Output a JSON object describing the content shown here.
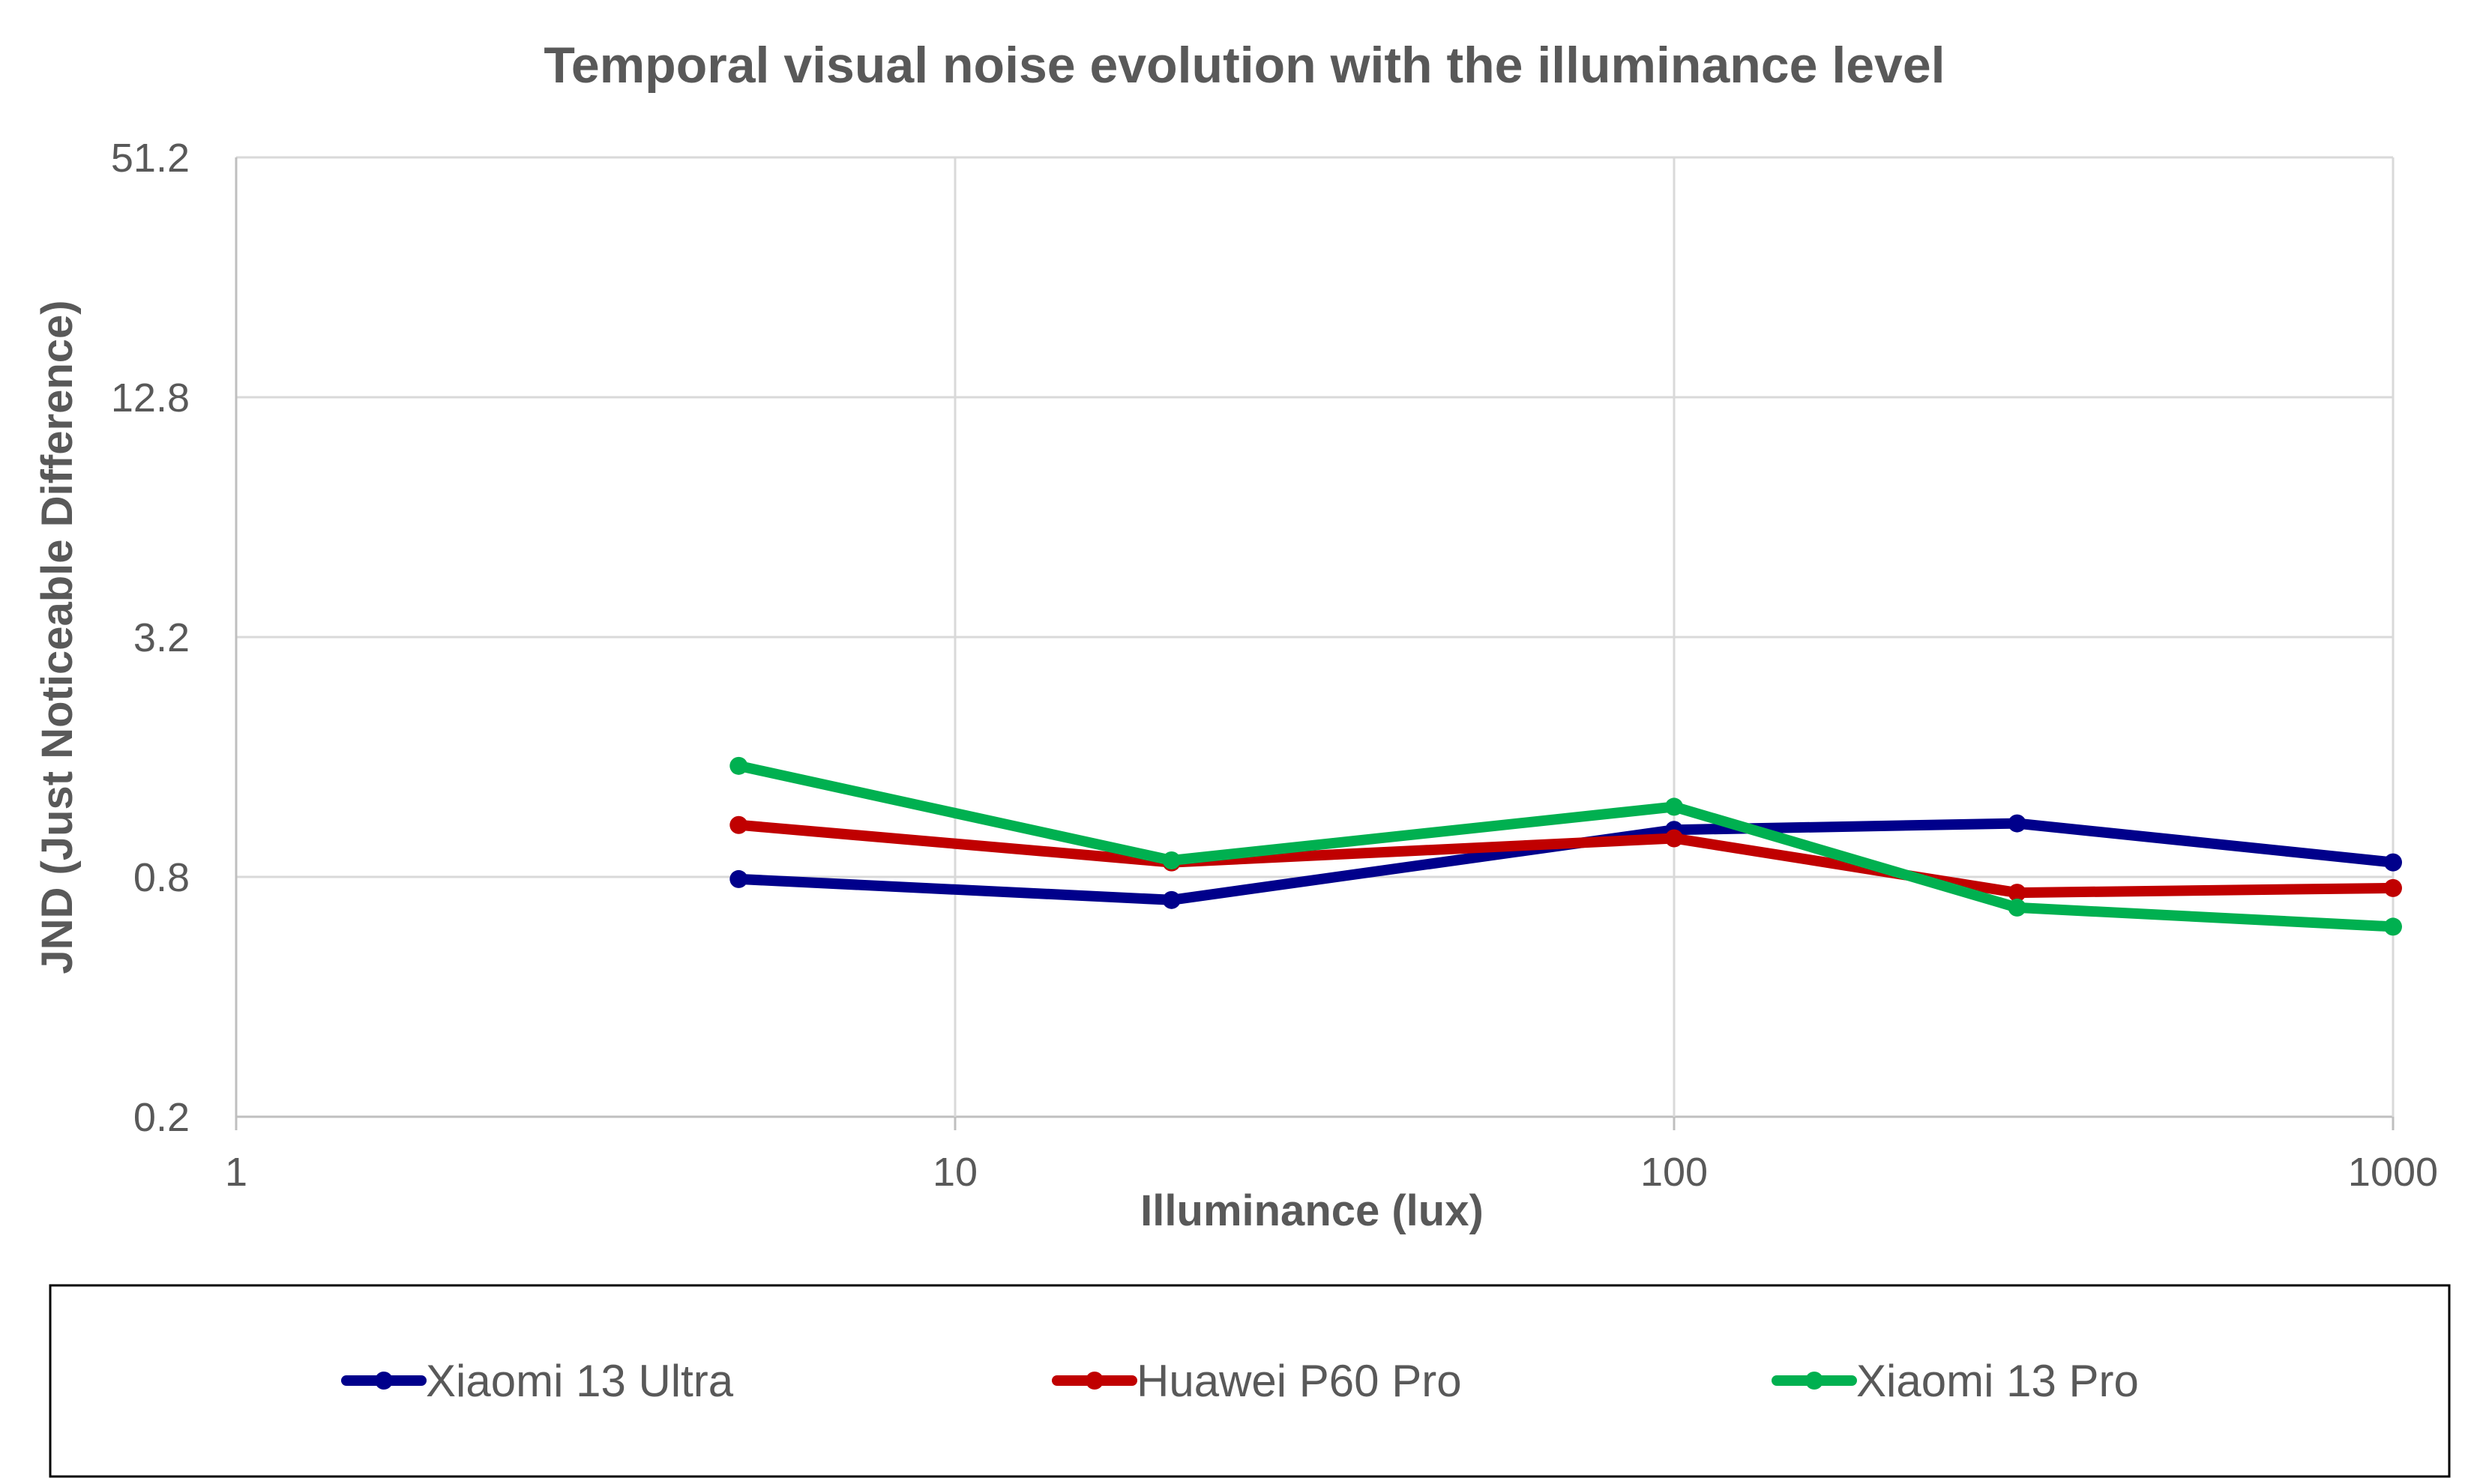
{
  "chart_data": {
    "type": "line",
    "title": "Temporal visual noise evolution with the illuminance level",
    "xlabel": "Illuminance (lux)",
    "ylabel": "JND (Just Noticeable Difference)",
    "x_scale": "log",
    "y_scale": "log",
    "xlim": [
      1,
      1000
    ],
    "ylim": [
      0.2,
      51.2
    ],
    "x_ticks": [
      1,
      10,
      100,
      1000
    ],
    "x_tick_labels": [
      "1",
      "10",
      "100",
      "1000"
    ],
    "y_ticks": [
      0.2,
      0.8,
      3.2,
      12.8,
      51.2
    ],
    "y_tick_labels": [
      "0.2",
      "0.8",
      "3.2",
      "12.8",
      "51.2"
    ],
    "grid": true,
    "legend_position": "bottom",
    "series": [
      {
        "name": "Xiaomi 13 Ultra",
        "color": "#00008b",
        "x": [
          5,
          20,
          100,
          300,
          1000
        ],
        "y": [
          0.79,
          0.7,
          1.05,
          1.09,
          0.87
        ]
      },
      {
        "name": "Huawei P60 Pro",
        "color": "#c00000",
        "x": [
          5,
          20,
          100,
          300,
          1000
        ],
        "y": [
          1.08,
          0.87,
          1.0,
          0.73,
          0.75
        ]
      },
      {
        "name": "Xiaomi 13 Pro",
        "color": "#00b050",
        "x": [
          5,
          20,
          100,
          300,
          1000
        ],
        "y": [
          1.52,
          0.88,
          1.2,
          0.67,
          0.6
        ]
      }
    ]
  }
}
